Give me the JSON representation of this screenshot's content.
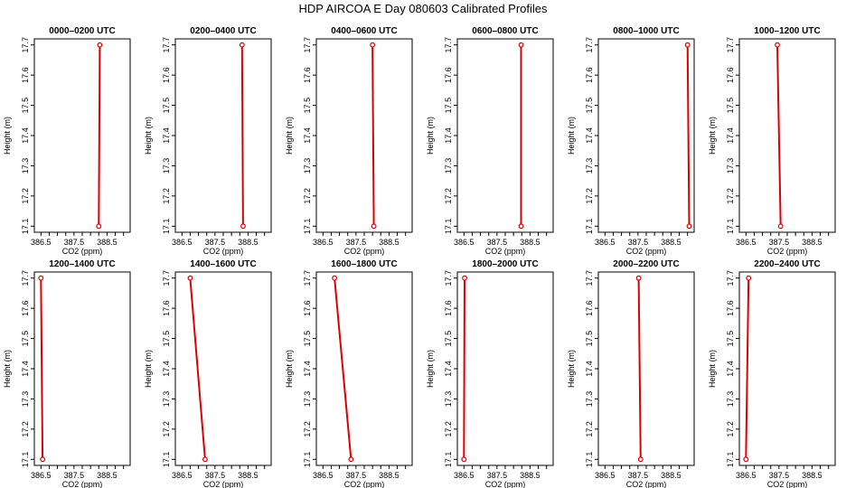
{
  "figure": {
    "title": "HDP AIRCOA E  Day 080603  Calibrated Profiles",
    "line_color": "#dd0000",
    "marker_color": "#dd0000"
  },
  "chart_data": [
    {
      "type": "line",
      "title": "0000–0200 UTC",
      "xlabel": "CO2 (ppm)",
      "ylabel": "Height (m)",
      "xlim": [
        386.3,
        389.2
      ],
      "ylim": [
        17.08,
        17.72
      ],
      "xticks": [
        "386.5",
        "387.5",
        "388.5"
      ],
      "xticks_at": [
        386.5,
        386.75,
        387.0,
        387.25,
        387.5,
        387.75,
        388.0,
        388.25,
        388.5,
        388.75,
        389.0
      ],
      "yticks": [
        "17.1",
        "17.2",
        "17.3",
        "17.4",
        "17.5",
        "17.6",
        "17.7"
      ],
      "series": [
        {
          "x": [
            388.25,
            388.28
          ],
          "y": [
            17.1,
            17.7
          ]
        }
      ]
    },
    {
      "type": "line",
      "title": "0200–0400 UTC",
      "xlabel": "CO2 (ppm)",
      "ylabel": "Height (m)",
      "xlim": [
        386.3,
        389.2
      ],
      "ylim": [
        17.08,
        17.72
      ],
      "xticks": [
        "386.5",
        "387.5",
        "388.5"
      ],
      "yticks": [
        "17.1",
        "17.2",
        "17.3",
        "17.4",
        "17.5",
        "17.6",
        "17.7"
      ],
      "series": [
        {
          "x": [
            388.35,
            388.32
          ],
          "y": [
            17.1,
            17.7
          ]
        }
      ]
    },
    {
      "type": "line",
      "title": "0400–0600 UTC",
      "xlabel": "CO2 (ppm)",
      "ylabel": "Height (m)",
      "xlim": [
        386.3,
        389.2
      ],
      "ylim": [
        17.08,
        17.72
      ],
      "xticks": [
        "386.5",
        "387.5",
        "388.5"
      ],
      "yticks": [
        "17.1",
        "17.2",
        "17.3",
        "17.4",
        "17.5",
        "17.6",
        "17.7"
      ],
      "series": [
        {
          "x": [
            388.04,
            388.0
          ],
          "y": [
            17.1,
            17.7
          ]
        }
      ]
    },
    {
      "type": "line",
      "title": "0600–0800 UTC",
      "xlabel": "CO2 (ppm)",
      "ylabel": "Height (m)",
      "xlim": [
        386.3,
        389.2
      ],
      "ylim": [
        17.08,
        17.72
      ],
      "xticks": [
        "386.5",
        "387.5",
        "388.5"
      ],
      "yticks": [
        "17.1",
        "17.2",
        "17.3",
        "17.4",
        "17.5",
        "17.6",
        "17.7"
      ],
      "series": [
        {
          "x": [
            388.23,
            388.23
          ],
          "y": [
            17.1,
            17.7
          ]
        }
      ]
    },
    {
      "type": "line",
      "title": "0800–1000 UTC",
      "xlabel": "CO2 (ppm)",
      "ylabel": "Height (m)",
      "xlim": [
        386.3,
        389.2
      ],
      "ylim": [
        17.08,
        17.72
      ],
      "xticks": [
        "386.5",
        "387.5",
        "388.5"
      ],
      "yticks": [
        "17.1",
        "17.2",
        "17.3",
        "17.4",
        "17.5",
        "17.6",
        "17.7"
      ],
      "series": [
        {
          "x": [
            389.05,
            389.0
          ],
          "y": [
            17.1,
            17.7
          ]
        }
      ]
    },
    {
      "type": "line",
      "title": "1000–1200 UTC",
      "xlabel": "CO2 (ppm)",
      "ylabel": "Height (m)",
      "xlim": [
        386.3,
        389.2
      ],
      "ylim": [
        17.08,
        17.72
      ],
      "xticks": [
        "386.5",
        "387.5",
        "388.5"
      ],
      "yticks": [
        "17.1",
        "17.2",
        "17.3",
        "17.4",
        "17.5",
        "17.6",
        "17.7"
      ],
      "series": [
        {
          "x": [
            387.55,
            387.45
          ],
          "y": [
            17.1,
            17.7
          ]
        }
      ]
    },
    {
      "type": "line",
      "title": "1200–1400 UTC",
      "xlabel": "CO2 (ppm)",
      "ylabel": "Height (m)",
      "xlim": [
        386.3,
        389.2
      ],
      "ylim": [
        17.08,
        17.72
      ],
      "xticks": [
        "386.5",
        "387.5",
        "388.5"
      ],
      "yticks": [
        "17.1",
        "17.2",
        "17.3",
        "17.4",
        "17.5",
        "17.6",
        "17.7"
      ],
      "series": [
        {
          "x": [
            386.55,
            386.5
          ],
          "y": [
            17.1,
            17.7
          ]
        }
      ]
    },
    {
      "type": "line",
      "title": "1400–1600 UTC",
      "xlabel": "CO2 (ppm)",
      "ylabel": "Height (m)",
      "xlim": [
        386.3,
        389.2
      ],
      "ylim": [
        17.08,
        17.72
      ],
      "xticks": [
        "386.5",
        "387.5",
        "388.5"
      ],
      "yticks": [
        "17.1",
        "17.2",
        "17.3",
        "17.4",
        "17.5",
        "17.6",
        "17.7"
      ],
      "series": [
        {
          "x": [
            387.2,
            386.75
          ],
          "y": [
            17.1,
            17.7
          ]
        }
      ]
    },
    {
      "type": "line",
      "title": "1600–1800 UTC",
      "xlabel": "CO2 (ppm)",
      "ylabel": "Height (m)",
      "xlim": [
        386.3,
        389.2
      ],
      "ylim": [
        17.08,
        17.72
      ],
      "xticks": [
        "386.5",
        "387.5",
        "388.5"
      ],
      "yticks": [
        "17.1",
        "17.2",
        "17.3",
        "17.4",
        "17.5",
        "17.6",
        "17.7"
      ],
      "series": [
        {
          "x": [
            387.35,
            386.85
          ],
          "y": [
            17.1,
            17.7
          ]
        }
      ]
    },
    {
      "type": "line",
      "title": "1800–2000 UTC",
      "xlabel": "CO2 (ppm)",
      "ylabel": "Height (m)",
      "xlim": [
        386.3,
        389.2
      ],
      "ylim": [
        17.08,
        17.72
      ],
      "xticks": [
        "386.5",
        "387.5",
        "388.5"
      ],
      "yticks": [
        "17.1",
        "17.2",
        "17.3",
        "17.4",
        "17.5",
        "17.6",
        "17.7"
      ],
      "series": [
        {
          "x": [
            386.5,
            386.52
          ],
          "y": [
            17.1,
            17.7
          ]
        }
      ]
    },
    {
      "type": "line",
      "title": "2000–2200 UTC",
      "xlabel": "CO2 (ppm)",
      "ylabel": "Height (m)",
      "xlim": [
        386.3,
        389.2
      ],
      "ylim": [
        17.08,
        17.72
      ],
      "xticks": [
        "386.5",
        "387.5",
        "388.5"
      ],
      "yticks": [
        "17.1",
        "17.2",
        "17.3",
        "17.4",
        "17.5",
        "17.6",
        "17.7"
      ],
      "series": [
        {
          "x": [
            387.58,
            387.52
          ],
          "y": [
            17.1,
            17.7
          ]
        }
      ]
    },
    {
      "type": "line",
      "title": "2200–2400 UTC",
      "xlabel": "CO2 (ppm)",
      "ylabel": "Height (m)",
      "xlim": [
        386.3,
        389.2
      ],
      "ylim": [
        17.08,
        17.72
      ],
      "xticks": [
        "386.5",
        "387.5",
        "388.5"
      ],
      "yticks": [
        "17.1",
        "17.2",
        "17.3",
        "17.4",
        "17.5",
        "17.6",
        "17.7"
      ],
      "series": [
        {
          "x": [
            386.5,
            386.58
          ],
          "y": [
            17.1,
            17.7
          ]
        }
      ]
    }
  ]
}
